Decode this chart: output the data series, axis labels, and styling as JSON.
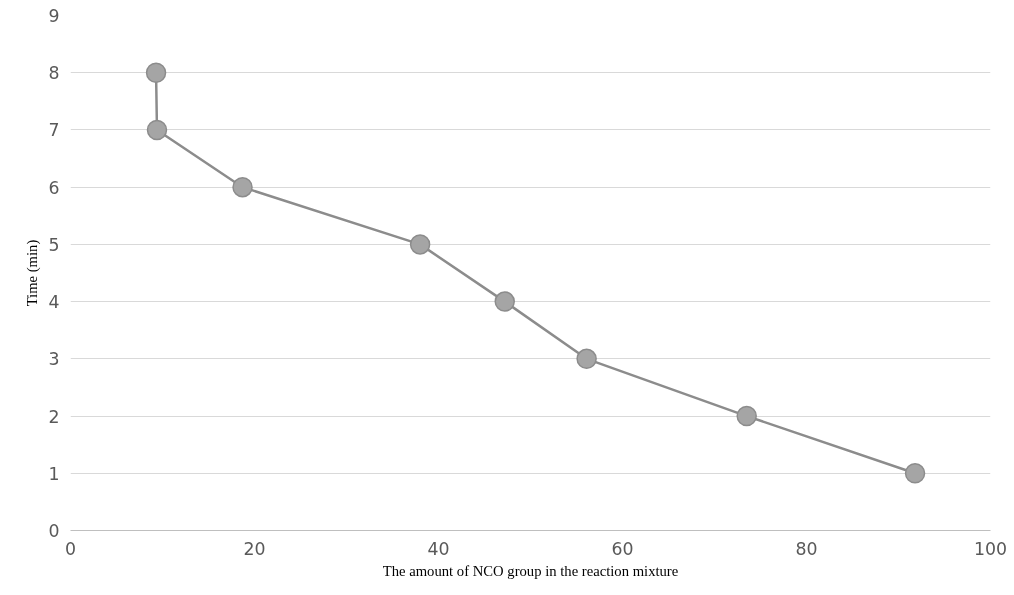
{
  "chart_data": {
    "type": "line",
    "xlabel": "The amount of NCO group in the reaction mixture",
    "ylabel": "Time (min)",
    "x": [
      9.3,
      9.4,
      18.7,
      38.0,
      47.2,
      56.1,
      73.5,
      91.8
    ],
    "series": [
      {
        "color": "#8c8c8c",
        "values": [
          8,
          7,
          6,
          5,
          4,
          3,
          2,
          1
        ]
      }
    ],
    "xlim": [
      0,
      100
    ],
    "xticks": [
      0,
      20,
      40,
      60,
      80,
      100
    ],
    "ylim": [
      0,
      9
    ],
    "yticks": [
      0,
      1,
      2,
      3,
      4,
      5,
      6,
      7,
      8,
      9
    ],
    "grid": "y",
    "marker": "circle",
    "line_style": "solid"
  }
}
